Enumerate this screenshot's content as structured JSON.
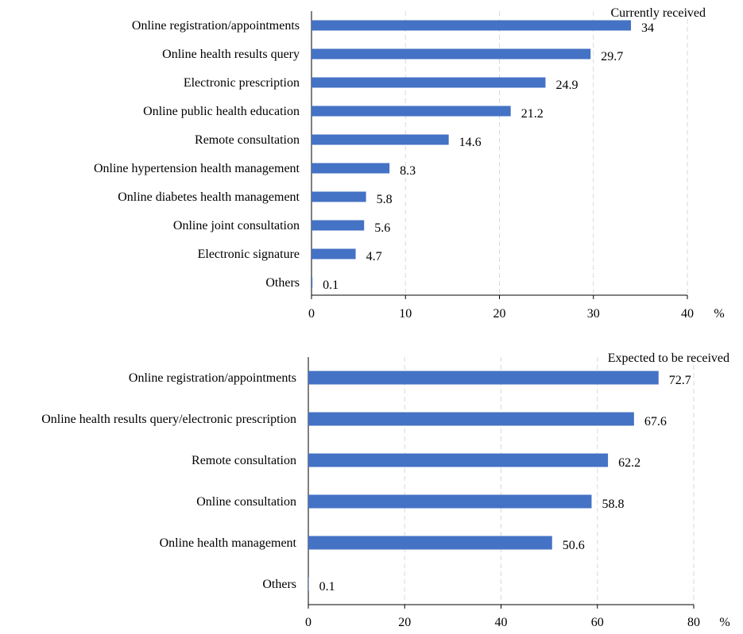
{
  "chart_data": [
    {
      "type": "bar",
      "orientation": "horizontal",
      "title": "Currently received",
      "unit": "%",
      "categories": [
        "Online registration/appointments",
        "Online health results query",
        "Electronic prescription",
        "Online public health education",
        "Remote consultation",
        "Online hypertension health management",
        "Online diabetes health management",
        "Online joint consultation",
        "Electronic signature",
        "Others"
      ],
      "values": [
        34,
        29.7,
        24.9,
        21.2,
        14.6,
        8.3,
        5.8,
        5.6,
        4.7,
        0.1
      ],
      "value_labels": [
        "34",
        "29.7",
        "24.9",
        "21.2",
        "14.6",
        "8.3",
        "5.8",
        "5.6",
        "4.7",
        "0.1"
      ],
      "xlim": [
        0,
        40
      ],
      "xticks": [
        0,
        10,
        20,
        30,
        40
      ],
      "grid": "vertical dashed",
      "bar_color": "#4472C4"
    },
    {
      "type": "bar",
      "orientation": "horizontal",
      "title": "Expected to be received",
      "unit": "%",
      "categories": [
        "Online registration/appointments",
        "Online health results query/electronic prescription",
        "Remote consultation",
        "Online consultation",
        "Online health management",
        "Others"
      ],
      "values": [
        72.7,
        67.6,
        62.2,
        58.8,
        50.6,
        0.1
      ],
      "value_labels": [
        "72.7",
        "67.6",
        "62.2",
        "58.8",
        "50.6",
        "0.1"
      ],
      "xlim": [
        0,
        80
      ],
      "xticks": [
        0,
        20,
        40,
        60,
        80
      ],
      "grid": "vertical dashed",
      "bar_color": "#4472C4"
    }
  ]
}
